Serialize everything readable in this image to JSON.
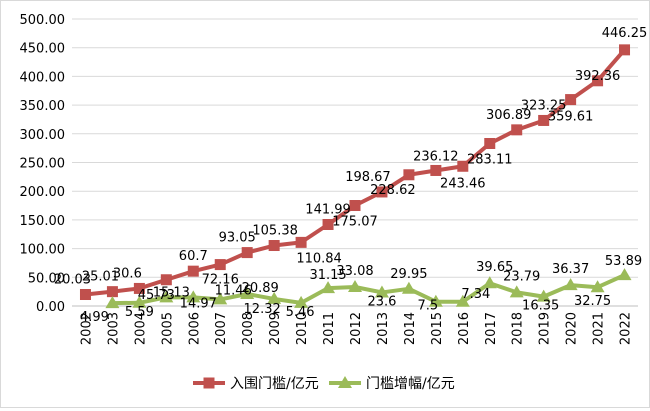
{
  "chart_data": {
    "type": "line",
    "title": "",
    "xlabel": "",
    "ylabel": "",
    "categories": [
      "2002",
      "2003",
      "2004",
      "2005",
      "2006",
      "2007",
      "2008",
      "2009",
      "2010",
      "2011",
      "2012",
      "2013",
      "2014",
      "2015",
      "2016",
      "2017",
      "2018",
      "2019",
      "2020",
      "2021",
      "2022"
    ],
    "ylim": [
      0,
      500
    ],
    "yticks": [
      "0.00",
      "50.00",
      "100.00",
      "150.00",
      "200.00",
      "250.00",
      "300.00",
      "350.00",
      "400.00",
      "450.00",
      "500.00"
    ],
    "grid": true,
    "legend": "bottom",
    "series": [
      {
        "name": "入围门槛/亿元",
        "color": "#c0504d",
        "marker": "square",
        "x": [
          "2002",
          "2003",
          "2004",
          "2005",
          "2006",
          "2007",
          "2008",
          "2009",
          "2010",
          "2011",
          "2012",
          "2013",
          "2014",
          "2015",
          "2016",
          "2017",
          "2018",
          "2019",
          "2020",
          "2021",
          "2022"
        ],
        "values": [
          20.03,
          25.01,
          30.6,
          45.73,
          60.7,
          72.16,
          93.05,
          105.38,
          110.84,
          141.99,
          175.07,
          198.67,
          228.62,
          236.12,
          243.46,
          283.11,
          306.89,
          323.25,
          359.61,
          392.36,
          446.25
        ],
        "labels": [
          "20.03",
          "25.01",
          "30.6",
          "45.73",
          "60.7",
          "72.16",
          "93.05",
          "105.38",
          "110.84",
          "141.99",
          "175.07",
          "198.67",
          "228.62",
          "236.12",
          "243.46",
          "283.11",
          "306.89",
          "323.25",
          "359.61",
          "392.36",
          "446.25"
        ]
      },
      {
        "name": "门槛增幅/亿元",
        "color": "#9bbb59",
        "marker": "triangle",
        "x": [
          "2003",
          "2004",
          "2005",
          "2006",
          "2007",
          "2008",
          "2009",
          "2010",
          "2011",
          "2012",
          "2013",
          "2014",
          "2015",
          "2016",
          "2017",
          "2018",
          "2019",
          "2020",
          "2021",
          "2022"
        ],
        "values": [
          4.99,
          5.59,
          15.13,
          14.97,
          11.46,
          20.89,
          12.32,
          5.46,
          31.15,
          33.08,
          23.6,
          29.95,
          7.5,
          7.34,
          39.65,
          23.79,
          16.35,
          36.37,
          32.75,
          53.89
        ],
        "labels": [
          "4.99",
          "5.59",
          "15.13",
          "14.97",
          "11.46",
          "20.89",
          "12.32",
          "5.46",
          "31.15",
          "33.08",
          "23.6",
          "29.95",
          "7.5",
          "7.34",
          "39.65",
          "23.79",
          "16.35",
          "36.37",
          "32.75",
          "53.89"
        ]
      }
    ]
  }
}
